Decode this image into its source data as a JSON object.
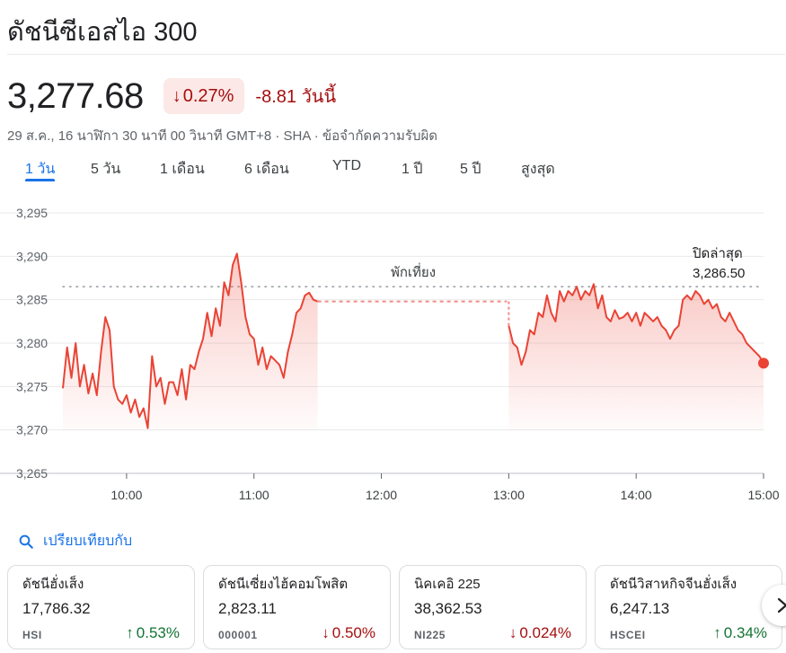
{
  "header": {
    "title": "ดัชนีซีเอสไอ 300"
  },
  "quote": {
    "price": "3,277.68",
    "change_pct": "0.27%",
    "change_abs": "-8.81 วันนี้",
    "meta": "29 ส.ค., 16 นาฬิกา 30 นาที 00 วินาที GMT+8 · SHA · ข้อจำกัดความรับผิด"
  },
  "tabs": [
    {
      "label": "1 วัน",
      "active": true
    },
    {
      "label": "5 วัน"
    },
    {
      "label": "1 เดือน"
    },
    {
      "label": "6 เดือน"
    },
    {
      "label": "YTD"
    },
    {
      "label": "1 ปี"
    },
    {
      "label": "5 ปี"
    },
    {
      "label": "สูงสุด"
    }
  ],
  "colors": {
    "down": "#a50e0e",
    "up": "#137333",
    "line": "#ea4335",
    "accent": "#1a73e8"
  },
  "chart_data": {
    "type": "line",
    "ylim": [
      3265,
      3295
    ],
    "y_ticks": [
      "3,295",
      "3,290",
      "3,285",
      "3,280",
      "3,275",
      "3,270",
      "3,265"
    ],
    "x_ticks": [
      "10:00",
      "11:00",
      "12:00",
      "13:00",
      "14:00",
      "15:00"
    ],
    "grid": true,
    "previous_close": 3286.5,
    "previous_close_label": "ปิดล่าสุด",
    "previous_close_value": "3,286.50",
    "break_label": "พักเที่ยง",
    "series": [
      {
        "x": [
          "9:30",
          "9:32",
          "9:34",
          "9:36",
          "9:38",
          "9:40",
          "9:42",
          "9:44",
          "9:46",
          "9:48",
          "9:50",
          "9:52",
          "9:54",
          "9:56",
          "9:58",
          "10:00",
          "10:02",
          "10:04",
          "10:06",
          "10:08",
          "10:10",
          "10:12",
          "10:14",
          "10:16",
          "10:18",
          "10:20",
          "10:22",
          "10:24",
          "10:26",
          "10:28",
          "10:30",
          "10:32",
          "10:34",
          "10:36",
          "10:38",
          "10:40",
          "10:42",
          "10:44",
          "10:46",
          "10:48",
          "10:50",
          "10:52",
          "10:54",
          "10:56",
          "10:58",
          "11:00",
          "11:02",
          "11:04",
          "11:06",
          "11:08",
          "11:10",
          "11:12",
          "11:14",
          "11:16",
          "11:18",
          "11:20",
          "11:22",
          "11:24",
          "11:26",
          "11:28",
          "11:30"
        ],
        "values": [
          3274.8,
          3279.5,
          3276.0,
          3280.0,
          3275.0,
          3277.5,
          3274.2,
          3276.5,
          3274.0,
          3279.0,
          3283.0,
          3281.5,
          3275.0,
          3273.5,
          3273.0,
          3274.0,
          3272.0,
          3273.5,
          3271.5,
          3272.5,
          3270.2,
          3278.5,
          3275.0,
          3276.0,
          3273.0,
          3275.5,
          3275.5,
          3274.0,
          3277.0,
          3273.5,
          3277.5,
          3277.0,
          3279.0,
          3280.5,
          3283.5,
          3280.8,
          3284.0,
          3282.0,
          3287.0,
          3285.5,
          3289.0,
          3290.3,
          3287.0,
          3283.0,
          3281.0,
          3280.5,
          3277.5,
          3279.5,
          3277.0,
          3278.5,
          3278.0,
          3277.5,
          3276.0,
          3279.0,
          3281.0,
          3283.5,
          3284.0,
          3285.5,
          3285.8,
          3285.0,
          3284.8
        ]
      },
      {
        "x": [
          "13:00",
          "13:02",
          "13:04",
          "13:06",
          "13:08",
          "13:10",
          "13:12",
          "13:14",
          "13:16",
          "13:18",
          "13:20",
          "13:22",
          "13:24",
          "13:26",
          "13:28",
          "13:30",
          "13:32",
          "13:34",
          "13:36",
          "13:38",
          "13:40",
          "13:42",
          "13:44",
          "13:46",
          "13:48",
          "13:50",
          "13:52",
          "13:54",
          "13:56",
          "13:58",
          "14:00",
          "14:02",
          "14:04",
          "14:06",
          "14:08",
          "14:10",
          "14:12",
          "14:14",
          "14:16",
          "14:18",
          "14:20",
          "14:22",
          "14:24",
          "14:26",
          "14:28",
          "14:30",
          "14:32",
          "14:34",
          "14:36",
          "14:38",
          "14:40",
          "14:42",
          "14:44",
          "14:46",
          "14:48",
          "14:50",
          "14:52",
          "14:54",
          "14:56",
          "14:58",
          "15:00"
        ],
        "values": [
          3282.0,
          3280.0,
          3279.5,
          3277.5,
          3279.0,
          3281.5,
          3281.0,
          3283.5,
          3283.0,
          3285.5,
          3283.5,
          3282.5,
          3286.0,
          3284.8,
          3286.0,
          3285.5,
          3286.5,
          3285.0,
          3286.0,
          3285.5,
          3286.8,
          3284.0,
          3285.5,
          3283.0,
          3282.5,
          3283.8,
          3282.8,
          3283.0,
          3283.5,
          3282.5,
          3283.5,
          3282.0,
          3283.5,
          3283.0,
          3282.5,
          3283.0,
          3282.0,
          3281.5,
          3280.5,
          3281.5,
          3282.0,
          3285.0,
          3285.5,
          3285.0,
          3286.0,
          3285.5,
          3284.5,
          3285.0,
          3284.0,
          3284.5,
          3283.0,
          3282.5,
          3283.5,
          3282.5,
          3281.5,
          3281.0,
          3280.0,
          3279.5,
          3279.0,
          3278.5,
          3277.68
        ]
      }
    ]
  },
  "compare": {
    "label": "เปรียบเทียบกับ"
  },
  "cards": [
    {
      "name": "ดัชนีฮั่งเส็ง",
      "value": "17,786.32",
      "ticker": "HSI",
      "change": "0.53%",
      "direction": "up"
    },
    {
      "name": "ดัชนีเซี่ยงไฮ้คอมโพสิต",
      "value": "2,823.11",
      "ticker": "000001",
      "change": "0.50%",
      "direction": "down"
    },
    {
      "name": "นิคเคอิ 225",
      "value": "38,362.53",
      "ticker": "NI225",
      "change": "0.024%",
      "direction": "down"
    },
    {
      "name": "ดัชนีวิสาหกิจจีนฮั่งเส็ง",
      "value": "6,247.13",
      "ticker": "HSCEI",
      "change": "0.34%",
      "direction": "up"
    }
  ]
}
